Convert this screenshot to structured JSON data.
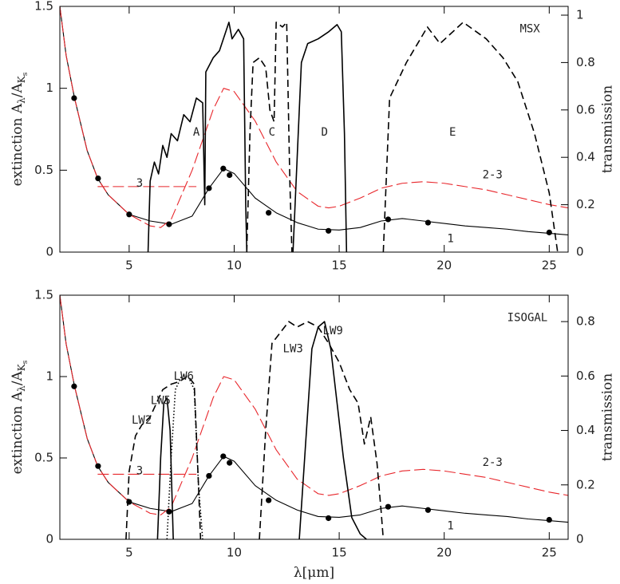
{
  "chart_data": [
    {
      "type": "line",
      "xlim": [
        1.7,
        25.9
      ],
      "xticks": [
        5,
        10,
        15,
        20,
        25
      ],
      "ylim": [
        0,
        1.5
      ],
      "yticks": [
        0,
        0.5,
        1,
        1.5
      ],
      "y2lim": [
        0,
        1.037
      ],
      "y2ticks": [
        0,
        0.2,
        0.4,
        0.6,
        0.8,
        1
      ],
      "ylabel": [
        "extinction A",
        "λ",
        "/A",
        "K",
        "s"
      ],
      "y2label": "transmission",
      "series": [
        {
          "style": "solid",
          "color": "#000000",
          "axis": "y",
          "x": [
            1.7,
            2,
            2.4,
            3,
            3.5,
            4,
            5,
            6,
            7,
            8,
            8.8,
            9.5,
            10,
            11,
            12,
            13,
            14,
            15,
            16,
            17,
            18,
            19,
            20,
            21,
            22,
            23,
            24,
            25,
            25.9
          ],
          "values": [
            1.5,
            1.2,
            0.94,
            0.62,
            0.45,
            0.35,
            0.23,
            0.19,
            0.17,
            0.22,
            0.39,
            0.51,
            0.48,
            0.33,
            0.24,
            0.18,
            0.14,
            0.135,
            0.15,
            0.19,
            0.205,
            0.19,
            0.175,
            0.16,
            0.15,
            0.14,
            0.125,
            0.115,
            0.105
          ]
        },
        {
          "style": "dashed",
          "color": "#e8262b",
          "axis": "y",
          "x": [
            1.7,
            2,
            2.4,
            3,
            3.5,
            4,
            5,
            6,
            6.5,
            7,
            8,
            9,
            9.5,
            10,
            11,
            12,
            13,
            14,
            14.5,
            15,
            16,
            17,
            18,
            19,
            20,
            21,
            22,
            23,
            24,
            25,
            25.9
          ],
          "values": [
            1.5,
            1.2,
            0.94,
            0.62,
            0.45,
            0.35,
            0.23,
            0.16,
            0.15,
            0.2,
            0.5,
            0.87,
            1.0,
            0.98,
            0.8,
            0.55,
            0.37,
            0.28,
            0.27,
            0.28,
            0.33,
            0.39,
            0.42,
            0.43,
            0.42,
            0.4,
            0.38,
            0.35,
            0.32,
            0.29,
            0.27
          ]
        },
        {
          "style": "dashed",
          "color": "#e8262b",
          "axis": "y",
          "x": [
            3.5,
            8.2
          ],
          "values": [
            0.4,
            0.4
          ]
        },
        {
          "style": "points",
          "color": "#000000",
          "axis": "y",
          "x": [
            2.38,
            3.52,
            5,
            6.9,
            8.8,
            9.48,
            9.78,
            11.64,
            14.49,
            17.33,
            19.23,
            25
          ],
          "values": [
            0.94,
            0.45,
            0.23,
            0.17,
            0.39,
            0.51,
            0.47,
            0.24,
            0.13,
            0.2,
            0.18,
            0.12
          ]
        },
        {
          "style": "solid",
          "color": "#000000",
          "axis": "y2",
          "x": [
            5.9,
            6.0,
            6.2,
            6.4,
            6.6,
            6.8,
            7.0,
            7.3,
            7.6,
            7.9,
            8.2,
            8.5,
            8.6,
            8.65,
            9.0,
            9.3,
            9.6,
            9.75,
            9.9,
            10.2,
            10.45,
            10.55,
            10.6
          ],
          "values": [
            0,
            0.3,
            0.38,
            0.33,
            0.45,
            0.4,
            0.5,
            0.47,
            0.58,
            0.55,
            0.65,
            0.63,
            0.2,
            0.76,
            0.82,
            0.85,
            0.93,
            0.97,
            0.9,
            0.94,
            0.9,
            0.2,
            0
          ]
        },
        {
          "style": "dashed",
          "color": "#000000",
          "axis": "y2",
          "x": [
            10.6,
            10.75,
            10.9,
            11.2,
            11.5,
            11.7,
            11.9,
            12.0,
            12.3,
            12.5,
            12.65,
            12.75
          ],
          "values": [
            0,
            0.5,
            0.8,
            0.82,
            0.78,
            0.6,
            0.55,
            0.97,
            0.95,
            0.97,
            0.3,
            0
          ]
        },
        {
          "style": "solid",
          "color": "#000000",
          "axis": "y2",
          "x": [
            12.8,
            13.0,
            13.2,
            13.5,
            14.0,
            14.5,
            14.9,
            15.1,
            15.25,
            15.35
          ],
          "values": [
            0,
            0.4,
            0.8,
            0.88,
            0.9,
            0.93,
            0.96,
            0.93,
            0.5,
            0
          ]
        },
        {
          "style": "dashed",
          "color": "#000000",
          "axis": "y2",
          "x": [
            17.1,
            17.4,
            18.2,
            19.2,
            19.8,
            20.9,
            22.0,
            22.8,
            23.5,
            24.3,
            25.0,
            25.4
          ],
          "values": [
            0,
            0.65,
            0.8,
            0.95,
            0.88,
            0.97,
            0.9,
            0.82,
            0.72,
            0.5,
            0.25,
            0
          ]
        }
      ],
      "annotations": [
        "A",
        "C",
        "D",
        "E",
        "MSX",
        "3",
        "2-3",
        "1"
      ]
    },
    {
      "type": "line",
      "xlim": [
        1.7,
        25.9
      ],
      "xticks": [
        5,
        10,
        15,
        20,
        25
      ],
      "ylim": [
        0,
        1.5
      ],
      "yticks": [
        0,
        0.5,
        1,
        1.5
      ],
      "y2lim": [
        0,
        0.897
      ],
      "y2ticks": [
        0,
        0.2,
        0.4,
        0.6,
        0.8
      ],
      "ylabel": [
        "extinction A",
        "λ",
        "/A",
        "K",
        "s"
      ],
      "y2label": "transmission",
      "xlabel": [
        "λ[",
        "μ",
        "m]"
      ],
      "series": [
        {
          "style": "solid",
          "color": "#000000",
          "axis": "y",
          "x": [
            1.7,
            2,
            2.4,
            3,
            3.5,
            4,
            5,
            6,
            7,
            8,
            8.8,
            9.5,
            10,
            11,
            12,
            13,
            14,
            15,
            16,
            17,
            18,
            19,
            20,
            21,
            22,
            23,
            24,
            25,
            25.9
          ],
          "values": [
            1.5,
            1.2,
            0.94,
            0.62,
            0.45,
            0.35,
            0.23,
            0.19,
            0.17,
            0.22,
            0.39,
            0.51,
            0.48,
            0.33,
            0.24,
            0.18,
            0.14,
            0.135,
            0.15,
            0.19,
            0.205,
            0.19,
            0.175,
            0.16,
            0.15,
            0.14,
            0.125,
            0.115,
            0.105
          ]
        },
        {
          "style": "dashed",
          "color": "#e8262b",
          "axis": "y",
          "x": [
            1.7,
            2,
            2.4,
            3,
            3.5,
            4,
            5,
            6,
            6.5,
            7,
            8,
            9,
            9.5,
            10,
            11,
            12,
            13,
            14,
            14.5,
            15,
            16,
            17,
            18,
            19,
            20,
            21,
            22,
            23,
            24,
            25,
            25.9
          ],
          "values": [
            1.5,
            1.2,
            0.94,
            0.62,
            0.45,
            0.35,
            0.23,
            0.16,
            0.15,
            0.2,
            0.5,
            0.87,
            1.0,
            0.98,
            0.8,
            0.55,
            0.37,
            0.28,
            0.27,
            0.28,
            0.33,
            0.39,
            0.42,
            0.43,
            0.42,
            0.4,
            0.38,
            0.35,
            0.32,
            0.29,
            0.27
          ]
        },
        {
          "style": "dashed",
          "color": "#e8262b",
          "axis": "y",
          "x": [
            3.5,
            8.2
          ],
          "values": [
            0.4,
            0.4
          ]
        },
        {
          "style": "points",
          "color": "#000000",
          "axis": "y",
          "x": [
            2.38,
            3.52,
            5,
            6.9,
            8.8,
            9.48,
            9.78,
            11.64,
            14.49,
            17.33,
            19.23,
            25
          ],
          "values": [
            0.94,
            0.45,
            0.23,
            0.17,
            0.39,
            0.51,
            0.47,
            0.24,
            0.13,
            0.2,
            0.18,
            0.12
          ]
        },
        {
          "style": "dashed",
          "color": "#000000",
          "axis": "y2",
          "x": [
            4.85,
            5.0,
            5.3,
            5.6,
            6.0,
            6.3,
            6.6,
            7.0,
            7.4,
            7.8,
            8.1,
            8.3,
            8.4
          ],
          "values": [
            0,
            0.25,
            0.38,
            0.42,
            0.45,
            0.5,
            0.55,
            0.57,
            0.58,
            0.6,
            0.57,
            0.2,
            0
          ]
        },
        {
          "style": "solid",
          "color": "#000000",
          "axis": "y2",
          "x": [
            6.35,
            6.5,
            6.65,
            6.8,
            6.95,
            7.1
          ],
          "values": [
            0,
            0.3,
            0.5,
            0.52,
            0.4,
            0
          ]
        },
        {
          "style": "dotted",
          "color": "#000000",
          "axis": "y2",
          "x": [
            6.8,
            7.0,
            7.2,
            7.5,
            7.8,
            8.1,
            8.3,
            8.5
          ],
          "values": [
            0,
            0.3,
            0.55,
            0.6,
            0.6,
            0.55,
            0.2,
            0
          ]
        },
        {
          "style": "dashed",
          "color": "#000000",
          "axis": "y2",
          "x": [
            11.2,
            11.5,
            11.8,
            12.2,
            12.6,
            13.0,
            13.5,
            14.0,
            14.5,
            15.0,
            15.5,
            15.9,
            16.2,
            16.5,
            16.8,
            17.0,
            17.1
          ],
          "values": [
            0,
            0.4,
            0.72,
            0.76,
            0.8,
            0.78,
            0.8,
            0.78,
            0.72,
            0.65,
            0.55,
            0.5,
            0.35,
            0.45,
            0.28,
            0.1,
            0
          ]
        },
        {
          "style": "solid",
          "color": "#000000",
          "axis": "y2",
          "x": [
            13.1,
            13.4,
            13.7,
            14.0,
            14.3,
            14.6,
            14.9,
            15.2,
            15.6,
            16.0,
            16.3
          ],
          "values": [
            0,
            0.35,
            0.7,
            0.78,
            0.8,
            0.7,
            0.5,
            0.3,
            0.08,
            0.02,
            0
          ]
        }
      ],
      "annotations": [
        "LW2",
        "LW5",
        "LW6",
        "LW3",
        "LW9",
        "ISOGAL",
        "3",
        "2-3",
        "1"
      ]
    }
  ]
}
